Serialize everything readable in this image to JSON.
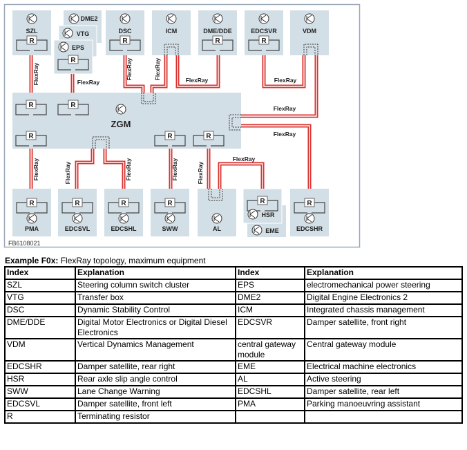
{
  "diagram": {
    "figure_id": "FB6108021",
    "bus_label": "FlexRay",
    "resistor_label": "R",
    "gateway": "ZGM",
    "nodes": {
      "szl": "SZL",
      "dme2": "DME2",
      "vtg": "VTG",
      "eps": "EPS",
      "dsc": "DSC",
      "icm": "ICM",
      "dme_dde": "DME/DDE",
      "edcsvr": "EDCSVR",
      "vdm": "VDM",
      "pma": "PMA",
      "edcsvl": "EDCSVL",
      "edcshl": "EDCSHL",
      "sww": "SWW",
      "al": "AL",
      "hsr": "HSR",
      "eme": "EME",
      "edcshr": "EDCSHR"
    },
    "colors": {
      "wire": "#d9332f",
      "box": "#d3dfe6",
      "frame": "#9aa8b8"
    }
  },
  "caption": {
    "label": "Example F0x:",
    "text": " FlexRay topology, maximum equipment"
  },
  "table": {
    "headers": [
      "Index",
      "Explanation",
      "Index",
      "Explanation"
    ],
    "rows": [
      [
        "SZL",
        "Steering column switch cluster",
        "EPS",
        "electromechanical power steering"
      ],
      [
        "VTG",
        "Transfer box",
        "DME2",
        "Digital Engine Electronics 2"
      ],
      [
        "DSC",
        "Dynamic Stability Control",
        "ICM",
        "Integrated chassis management"
      ],
      [
        "DME/DDE",
        "Digital Motor Electronics or Digital Diesel Electronics",
        "EDCSVR",
        "Damper satellite, front right"
      ],
      [
        "VDM",
        "Vertical Dynamics Management",
        "central gateway module",
        "Central gateway module"
      ],
      [
        "EDCSHR",
        "Damper satellite, rear right",
        "EME",
        "Electrical machine electronics"
      ],
      [
        "HSR",
        "Rear axle slip angle control",
        "AL",
        "Active steering"
      ],
      [
        "SWW",
        "Lane Change Warning",
        "EDCSHL",
        "Damper satellite, rear left"
      ],
      [
        "EDCSVL",
        "Damper satellite, front left",
        "PMA",
        "Parking manoeuvring assistant"
      ],
      [
        "R",
        "Terminating resistor",
        "",
        ""
      ]
    ]
  }
}
